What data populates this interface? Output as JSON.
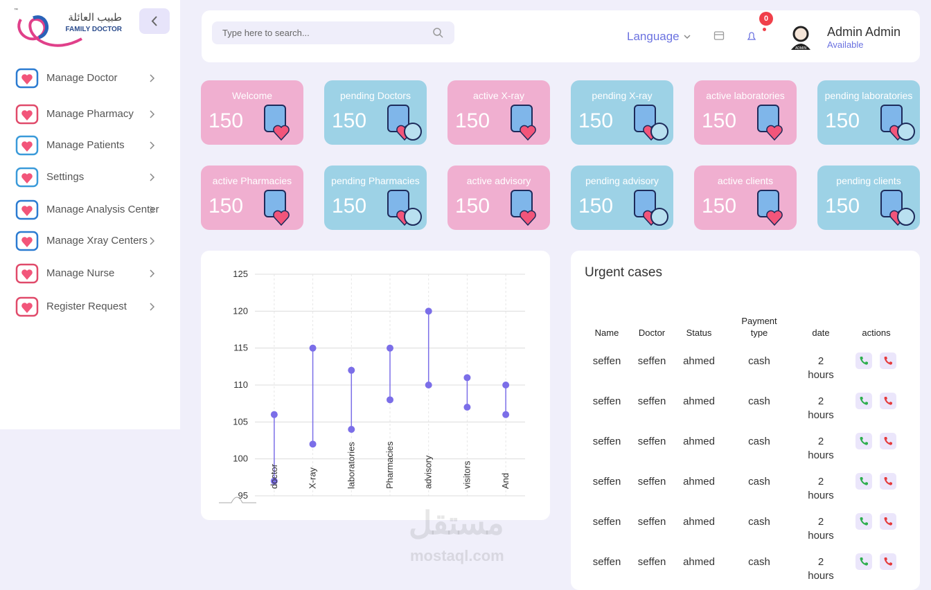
{
  "logo": {
    "arabic": "طبيب العائلة",
    "english": "FAMILY DOCTOR",
    "mark": "™"
  },
  "sidebar": {
    "items": [
      "Manage Doctor",
      "Manage Pharmacy",
      "Manage Patients",
      "Settings",
      "Manage Analysis Center",
      "Manage Xray Centers",
      "Manage Nurse",
      "Register Request"
    ]
  },
  "header": {
    "search_placeholder": "Type here to search...",
    "language": "Language",
    "notifications": 0,
    "user_name": "Admin Admin",
    "user_status": "Available",
    "avatar_label": "ADMIN"
  },
  "cards": [
    {
      "label": "Welcome",
      "value": 150
    },
    {
      "label": "pending Doctors",
      "value": 150
    },
    {
      "label": "active X-ray",
      "value": 150
    },
    {
      "label": "pending X-ray",
      "value": 150
    },
    {
      "label": "active laboratories",
      "value": 150
    },
    {
      "label": "pending laboratories",
      "value": 150
    },
    {
      "label": "active Pharmacies",
      "value": 150
    },
    {
      "label": "pending Pharmacies",
      "value": 150
    },
    {
      "label": "active advisory",
      "value": 150
    },
    {
      "label": "pending advisory",
      "value": 150
    },
    {
      "label": "active clients",
      "value": 150
    },
    {
      "label": "pending clients",
      "value": 150
    }
  ],
  "chart_data": {
    "type": "dumbbell",
    "categories": [
      "doctor",
      "X-ray",
      "laboratories",
      "Pharmacies",
      "advisory",
      "visitors",
      "And"
    ],
    "series": [
      {
        "color": "#7b6ee8",
        "values": [
          97,
          102,
          104,
          108,
          110,
          107,
          106
        ]
      },
      {
        "color": "#7b6ee8",
        "values": [
          106,
          115,
          112,
          115,
          120,
          111,
          110
        ]
      }
    ],
    "ylim": [
      95,
      125
    ],
    "yticks": [
      95,
      100,
      105,
      110,
      115,
      120,
      125
    ],
    "grid": true
  },
  "urgent_cases": {
    "title": "Urgent cases",
    "columns": [
      "Name",
      "Doctor",
      "Status",
      "Payment type",
      "date",
      "actions"
    ],
    "rows": [
      [
        "seffen",
        "seffen",
        "ahmed",
        "cash",
        "2 hours"
      ],
      [
        "seffen",
        "seffen",
        "ahmed",
        "cash",
        "2 hours"
      ],
      [
        "seffen",
        "seffen",
        "ahmed",
        "cash",
        "2 hours"
      ],
      [
        "seffen",
        "seffen",
        "ahmed",
        "cash",
        "2 hours"
      ],
      [
        "seffen",
        "seffen",
        "ahmed",
        "cash",
        "2 hours"
      ],
      [
        "seffen",
        "seffen",
        "ahmed",
        "cash",
        "2 hours"
      ]
    ]
  },
  "watermark": {
    "arabic": "مستقل",
    "latin": "mostaql.com"
  }
}
